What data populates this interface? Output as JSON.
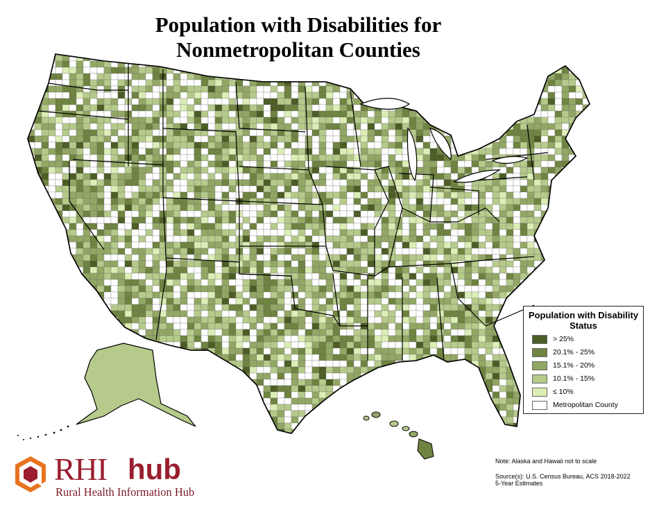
{
  "title_line1": "Population with Disabilities for",
  "title_line2": "Nonmetropolitan Counties",
  "legend": {
    "title": "Population with Disability Status",
    "items": [
      {
        "label": "> 25%",
        "color": "#4d5d26"
      },
      {
        "label": "20.1% - 25%",
        "color": "#6f8440"
      },
      {
        "label": "15.1% - 20%",
        "color": "#93a765"
      },
      {
        "label": "10.1% - 15%",
        "color": "#b6ca8b"
      },
      {
        "label": "≤ 10%",
        "color": "#dceeb6"
      },
      {
        "label": "Metropolitan County",
        "color": "#ffffff"
      }
    ]
  },
  "note": "Note: Alaska and Hawaii not to scale",
  "source_line1": "Source(s): U.S. Census Bureau, ACS  2018-2022",
  "source_line2": "5-Year Estimates",
  "logo": {
    "rhi": "RHI",
    "hub": "hub",
    "subtitle": "Rural Health Information Hub",
    "colors": {
      "orange": "#e8731f",
      "red": "#9a1e2e"
    }
  }
}
